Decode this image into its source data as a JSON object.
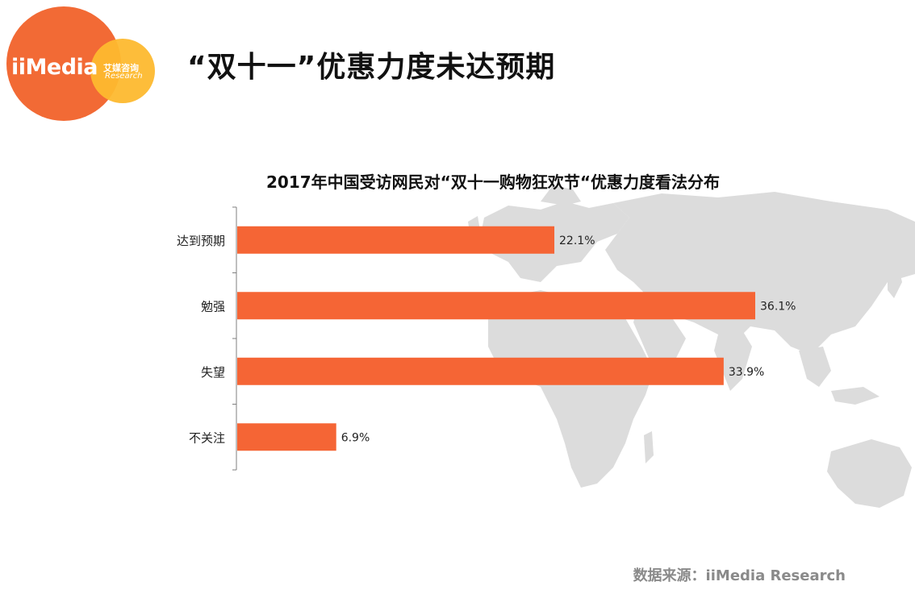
{
  "logo": {
    "wordmark": "iiMedia",
    "cn": "艾媒咨询",
    "en": "Research"
  },
  "page_title": "“双十一”优惠力度未达预期",
  "source_text": "数据来源：iiMedia Research",
  "colors": {
    "bar": "#f56535",
    "axis": "#7f7f7f",
    "map": "#d9d9d9",
    "brand_orange": "#f26a35",
    "brand_yellow": "#fdb92f"
  },
  "chart_data": {
    "type": "bar",
    "orientation": "horizontal",
    "title": "2017年中国受访网民对“双十一购物狂欢节“优惠力度看法分布",
    "categories": [
      "达到预期",
      "勉强",
      "失望",
      "不关注"
    ],
    "values": [
      22.1,
      36.1,
      33.9,
      6.9
    ],
    "value_labels": [
      "22.1%",
      "36.1%",
      "33.9%",
      "6.9%"
    ],
    "unit": "%",
    "xlim": [
      0,
      36.1
    ],
    "grid": false,
    "legend": "none"
  }
}
